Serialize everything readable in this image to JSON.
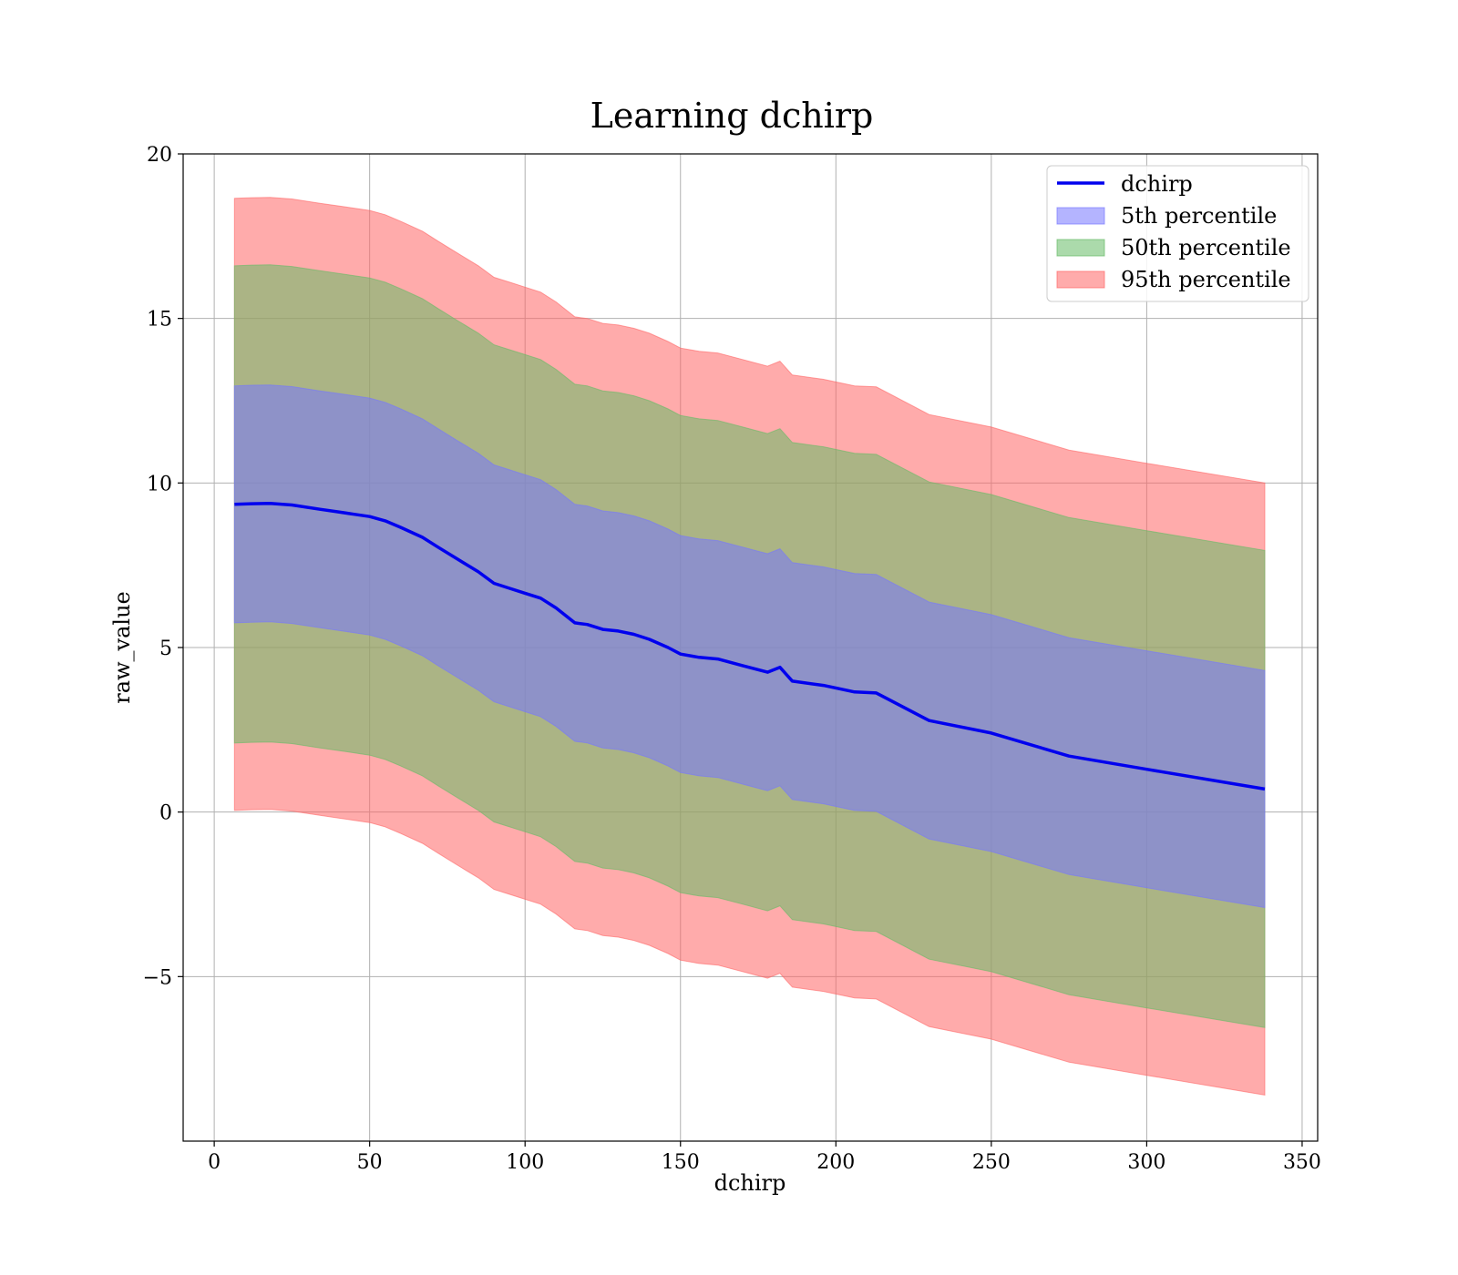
{
  "chart_data": {
    "type": "area",
    "title": "Learning dchirp",
    "xlabel": "dchirp",
    "ylabel": "raw_value",
    "xlim": [
      -10,
      355
    ],
    "ylim": [
      -10,
      20
    ],
    "xticks": [
      0,
      50,
      100,
      150,
      200,
      250,
      300,
      350
    ],
    "yticks": [
      20,
      15,
      10,
      5,
      0,
      -5
    ],
    "ytick_labels": [
      "20",
      "15",
      "10",
      "5",
      "0",
      "−5"
    ],
    "grid": true,
    "legend_position": "top-right",
    "x": [
      6.5,
      12,
      18,
      25,
      34,
      40,
      45,
      50,
      55,
      60,
      67,
      72,
      78,
      85,
      90,
      95,
      100,
      105,
      110,
      116,
      120,
      125,
      130,
      135,
      140,
      146,
      150,
      156,
      162,
      170,
      178,
      182,
      186,
      196,
      206,
      213,
      230,
      250,
      275,
      300,
      338
    ],
    "series": [
      {
        "name": "dchirp",
        "kind": "line",
        "color": "#0000ee",
        "values": [
          9.35,
          9.37,
          9.38,
          9.33,
          9.2,
          9.12,
          9.05,
          8.98,
          8.85,
          8.65,
          8.35,
          8.05,
          7.7,
          7.3,
          6.95,
          6.8,
          6.65,
          6.5,
          6.2,
          5.75,
          5.7,
          5.55,
          5.5,
          5.4,
          5.25,
          5.0,
          4.8,
          4.7,
          4.65,
          4.45,
          4.25,
          4.4,
          3.98,
          3.85,
          3.65,
          3.62,
          2.78,
          2.4,
          1.7,
          1.3,
          0.7
        ]
      },
      {
        "name": "5th percentile",
        "kind": "band",
        "color": "#7777ff",
        "half_width": 3.6
      },
      {
        "name": "50th percentile",
        "kind": "band",
        "color": "#66bb66",
        "half_width": 7.25
      },
      {
        "name": "95th percentile",
        "kind": "band",
        "color": "#ff6666",
        "half_width": 9.3
      }
    ]
  }
}
